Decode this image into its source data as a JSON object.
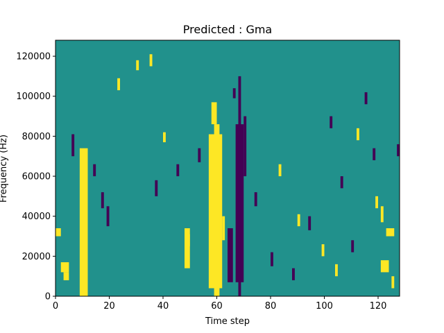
{
  "chart_data": {
    "type": "heatmap",
    "title": "Predicted : Gma",
    "xlabel": "Time step",
    "ylabel": "Frequency (Hz)",
    "xlim": [
      0,
      128
    ],
    "ylim": [
      0,
      128000
    ],
    "x_ticks": [
      0,
      20,
      40,
      60,
      80,
      100,
      120
    ],
    "x_tick_labels": [
      "0",
      "20",
      "40",
      "60",
      "80",
      "100",
      "120"
    ],
    "y_ticks": [
      0,
      20000,
      40000,
      60000,
      80000,
      100000,
      120000
    ],
    "y_tick_labels": [
      "0",
      "20000",
      "40000",
      "60000",
      "80000",
      "100000",
      "120000"
    ],
    "n_bins": 128,
    "levels": [
      "low",
      "mid",
      "high"
    ],
    "colors": {
      "low": "#440154",
      "mid": "#21918c",
      "high": "#fde725"
    },
    "background_level": "mid",
    "cells": [
      {
        "x": [
          9,
          12
        ],
        "y": [
          0,
          74000
        ],
        "level": "high"
      },
      {
        "x": [
          10,
          11
        ],
        "y": [
          17000,
          46000
        ],
        "level": "high"
      },
      {
        "x": [
          57,
          62
        ],
        "y": [
          4000,
          81000
        ],
        "level": "high"
      },
      {
        "x": [
          58,
          60
        ],
        "y": [
          86000,
          97000
        ],
        "level": "high"
      },
      {
        "x": [
          59,
          61
        ],
        "y": [
          0,
          86000
        ],
        "level": "high"
      },
      {
        "x": [
          67,
          70
        ],
        "y": [
          7000,
          86000
        ],
        "level": "low"
      },
      {
        "x": [
          68,
          69
        ],
        "y": [
          0,
          110000
        ],
        "level": "low"
      },
      {
        "x": [
          70,
          71
        ],
        "y": [
          60000,
          90000
        ],
        "level": "low"
      },
      {
        "x": [
          66,
          67
        ],
        "y": [
          99000,
          104000
        ],
        "level": "low"
      },
      {
        "x": [
          64,
          66
        ],
        "y": [
          7000,
          34000
        ],
        "level": "low"
      },
      {
        "x": [
          62,
          63
        ],
        "y": [
          28000,
          40000
        ],
        "level": "high"
      },
      {
        "x": [
          48,
          50
        ],
        "y": [
          14000,
          34000
        ],
        "level": "high"
      },
      {
        "x": [
          49,
          50
        ],
        "y": [
          25000,
          31000
        ],
        "level": "high"
      },
      {
        "x": [
          0,
          2
        ],
        "y": [
          30000,
          34000
        ],
        "level": "high"
      },
      {
        "x": [
          2,
          5
        ],
        "y": [
          12000,
          17000
        ],
        "level": "high"
      },
      {
        "x": [
          3,
          5
        ],
        "y": [
          8000,
          12000
        ],
        "level": "high"
      },
      {
        "x": [
          123,
          126
        ],
        "y": [
          30000,
          34000
        ],
        "level": "high"
      },
      {
        "x": [
          121,
          124
        ],
        "y": [
          12000,
          18000
        ],
        "level": "high"
      },
      {
        "x": [
          121,
          122
        ],
        "y": [
          37000,
          45000
        ],
        "level": "high"
      },
      {
        "x": [
          6,
          7
        ],
        "y": [
          70000,
          81000
        ],
        "level": "low"
      },
      {
        "x": [
          19,
          20
        ],
        "y": [
          35000,
          45000
        ],
        "level": "low"
      },
      {
        "x": [
          14,
          15
        ],
        "y": [
          60000,
          66000
        ],
        "level": "low"
      },
      {
        "x": [
          17,
          18
        ],
        "y": [
          44000,
          52000
        ],
        "level": "low"
      },
      {
        "x": [
          37,
          38
        ],
        "y": [
          50000,
          58000
        ],
        "level": "low"
      },
      {
        "x": [
          45,
          46
        ],
        "y": [
          60000,
          66000
        ],
        "level": "low"
      },
      {
        "x": [
          53,
          54
        ],
        "y": [
          67000,
          74000
        ],
        "level": "low"
      },
      {
        "x": [
          74,
          75
        ],
        "y": [
          45000,
          52000
        ],
        "level": "low"
      },
      {
        "x": [
          80,
          81
        ],
        "y": [
          15000,
          22000
        ],
        "level": "low"
      },
      {
        "x": [
          88,
          89
        ],
        "y": [
          8000,
          14000
        ],
        "level": "low"
      },
      {
        "x": [
          94,
          95
        ],
        "y": [
          33000,
          40000
        ],
        "level": "low"
      },
      {
        "x": [
          102,
          103
        ],
        "y": [
          84000,
          90000
        ],
        "level": "low"
      },
      {
        "x": [
          106,
          107
        ],
        "y": [
          54000,
          60000
        ],
        "level": "low"
      },
      {
        "x": [
          110,
          111
        ],
        "y": [
          22000,
          28000
        ],
        "level": "low"
      },
      {
        "x": [
          115,
          116
        ],
        "y": [
          96000,
          102000
        ],
        "level": "low"
      },
      {
        "x": [
          118,
          119
        ],
        "y": [
          68000,
          74000
        ],
        "level": "low"
      },
      {
        "x": [
          127,
          128
        ],
        "y": [
          70000,
          76000
        ],
        "level": "low"
      },
      {
        "x": [
          23,
          24
        ],
        "y": [
          103000,
          109000
        ],
        "level": "high"
      },
      {
        "x": [
          30,
          31
        ],
        "y": [
          113000,
          118000
        ],
        "level": "high"
      },
      {
        "x": [
          35,
          36
        ],
        "y": [
          115000,
          121000
        ],
        "level": "high"
      },
      {
        "x": [
          40,
          41
        ],
        "y": [
          77000,
          82000
        ],
        "level": "high"
      },
      {
        "x": [
          83,
          84
        ],
        "y": [
          60000,
          66000
        ],
        "level": "high"
      },
      {
        "x": [
          90,
          91
        ],
        "y": [
          35000,
          41000
        ],
        "level": "high"
      },
      {
        "x": [
          99,
          100
        ],
        "y": [
          20000,
          26000
        ],
        "level": "high"
      },
      {
        "x": [
          104,
          105
        ],
        "y": [
          10000,
          16000
        ],
        "level": "high"
      },
      {
        "x": [
          112,
          113
        ],
        "y": [
          78000,
          84000
        ],
        "level": "high"
      },
      {
        "x": [
          119,
          120
        ],
        "y": [
          44000,
          50000
        ],
        "level": "high"
      },
      {
        "x": [
          125,
          126
        ],
        "y": [
          4000,
          10000
        ],
        "level": "high"
      }
    ]
  }
}
